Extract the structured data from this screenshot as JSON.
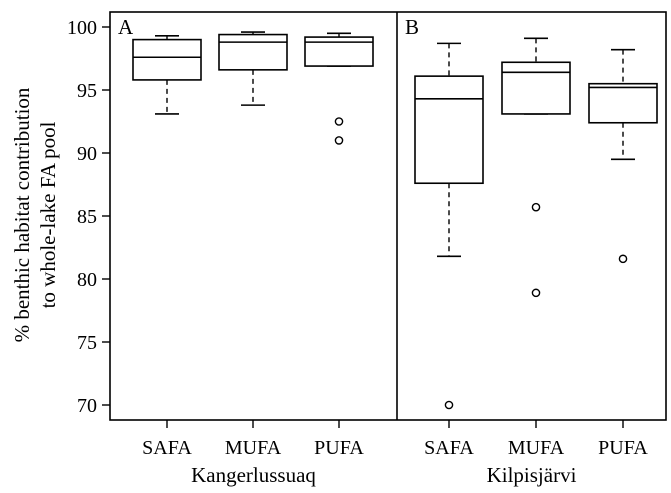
{
  "chart_data": {
    "type": "boxplot",
    "ylabel_line1": "% benthic habitat contribution",
    "ylabel_line2": "to whole-lake FA pool",
    "ylim": [
      69,
      101
    ],
    "yticks": [
      70,
      75,
      80,
      85,
      90,
      95,
      100
    ],
    "ytick_labels": [
      "70",
      "75",
      "80",
      "85",
      "90",
      "95",
      "100"
    ],
    "panels": [
      {
        "letter": "A",
        "xlabel": "Kangerlussuaq",
        "categories": [
          "SAFA",
          "MUFA",
          "PUFA"
        ],
        "boxes": [
          {
            "whisker_low": 93.1,
            "q1": 95.8,
            "median": 97.6,
            "q3": 99.0,
            "whisker_high": 99.3,
            "outliers": []
          },
          {
            "whisker_low": 93.8,
            "q1": 96.6,
            "median": 98.8,
            "q3": 99.4,
            "whisker_high": 99.6,
            "outliers": []
          },
          {
            "whisker_low": 96.9,
            "q1": 96.9,
            "median": 98.8,
            "q3": 99.2,
            "whisker_high": 99.5,
            "outliers": [
              92.5,
              91.0
            ]
          }
        ]
      },
      {
        "letter": "B",
        "xlabel": "Kilpisjärvi",
        "categories": [
          "SAFA",
          "MUFA",
          "PUFA"
        ],
        "boxes": [
          {
            "whisker_low": 81.8,
            "q1": 87.6,
            "median": 94.3,
            "q3": 96.1,
            "whisker_high": 98.7,
            "outliers": [
              70.0
            ]
          },
          {
            "whisker_low": 93.1,
            "q1": 93.1,
            "median": 96.4,
            "q3": 97.2,
            "whisker_high": 99.1,
            "outliers": [
              85.7,
              78.9
            ]
          },
          {
            "whisker_low": 89.5,
            "q1": 92.4,
            "median": 95.2,
            "q3": 95.5,
            "whisker_high": 98.2,
            "outliers": [
              81.6
            ]
          }
        ]
      }
    ]
  }
}
